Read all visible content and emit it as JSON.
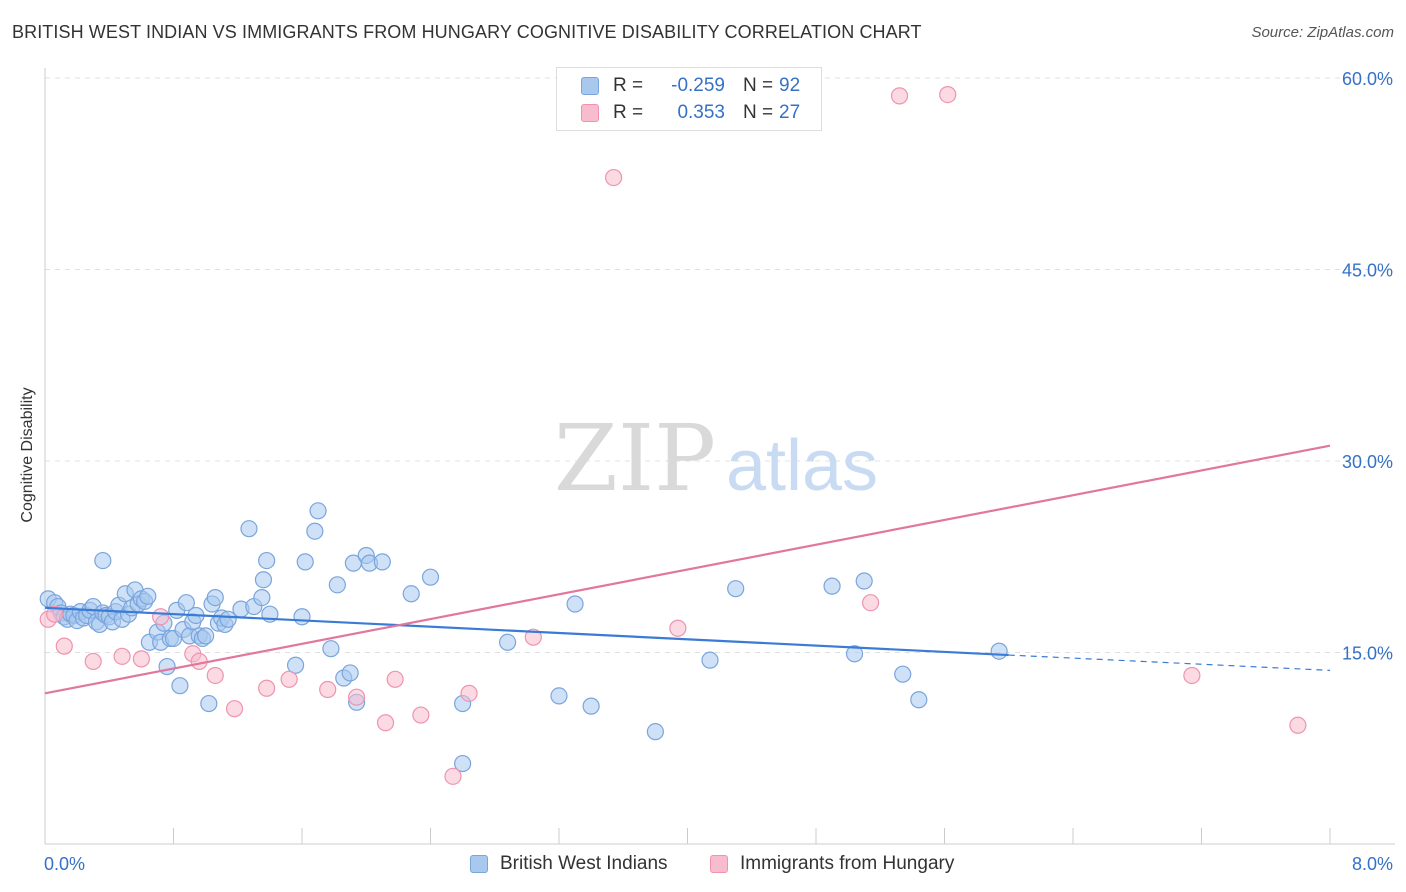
{
  "header": {
    "title": "BRITISH WEST INDIAN VS IMMIGRANTS FROM HUNGARY COGNITIVE DISABILITY CORRELATION CHART",
    "source": "Source: ZipAtlas.com"
  },
  "legend": {
    "rows": [
      {
        "r_label": "R =",
        "r_value": "-0.259",
        "n_label": "N =",
        "n_value": "92"
      },
      {
        "r_label": "R =",
        "r_value": "0.353",
        "n_label": "N =",
        "n_value": "27"
      }
    ]
  },
  "watermark": {
    "zip": "ZIP",
    "atlas": "atlas"
  },
  "colors": {
    "blue_fill": "#a8c8ee",
    "blue_stroke": "#7aa5dc",
    "blue_line": "#3a7bd5",
    "pink_fill": "#f7bccd",
    "pink_stroke": "#ef93ae",
    "pink_line": "#e2779e",
    "axis_label": "#3571c6",
    "grid": "#e0e0e0"
  },
  "chart_data": {
    "type": "scatter",
    "title": "BRITISH WEST INDIAN VS IMMIGRANTS FROM HUNGARY COGNITIVE DISABILITY CORRELATION CHART",
    "xlabel": "",
    "ylabel": "Cognitive Disability",
    "xlim": [
      0,
      8
    ],
    "ylim": [
      0,
      60
    ],
    "x_tick_labels": [
      "0.0%",
      "8.0%"
    ],
    "y_ticks": [
      15,
      30,
      45,
      60
    ],
    "y_tick_labels": [
      "15.0%",
      "30.0%",
      "45.0%",
      "60.0%"
    ],
    "grid": true,
    "legend_position": "bottom",
    "series": [
      {
        "name": "British West Indians",
        "color": "#a8c8ee",
        "r": -0.259,
        "n": 92,
        "trend": {
          "x0": 0,
          "y0": 18.5,
          "x1": 6.0,
          "y1": 14.8,
          "dashed_to_x": 8.0,
          "dashed_to_y": 13.6
        },
        "points": [
          [
            0.02,
            19.2
          ],
          [
            0.06,
            18.9
          ],
          [
            0.08,
            18.6
          ],
          [
            0.1,
            18.1
          ],
          [
            0.12,
            17.8
          ],
          [
            0.14,
            17.6
          ],
          [
            0.16,
            18.0
          ],
          [
            0.18,
            17.9
          ],
          [
            0.2,
            17.5
          ],
          [
            0.22,
            18.2
          ],
          [
            0.24,
            17.7
          ],
          [
            0.26,
            17.9
          ],
          [
            0.28,
            18.3
          ],
          [
            0.3,
            18.6
          ],
          [
            0.32,
            17.4
          ],
          [
            0.34,
            17.2
          ],
          [
            0.36,
            18.1
          ],
          [
            0.38,
            17.9
          ],
          [
            0.4,
            17.8
          ],
          [
            0.42,
            17.4
          ],
          [
            0.44,
            18.2
          ],
          [
            0.46,
            18.7
          ],
          [
            0.48,
            17.6
          ],
          [
            0.5,
            19.6
          ],
          [
            0.52,
            18.0
          ],
          [
            0.54,
            18.5
          ],
          [
            0.56,
            19.9
          ],
          [
            0.58,
            18.8
          ],
          [
            0.6,
            19.2
          ],
          [
            0.62,
            19.0
          ],
          [
            0.64,
            19.4
          ],
          [
            0.36,
            22.2
          ],
          [
            0.65,
            15.8
          ],
          [
            0.7,
            16.6
          ],
          [
            0.72,
            15.8
          ],
          [
            0.74,
            17.3
          ],
          [
            0.76,
            13.9
          ],
          [
            0.78,
            16.1
          ],
          [
            0.8,
            16.1
          ],
          [
            0.82,
            18.3
          ],
          [
            0.84,
            12.4
          ],
          [
            0.86,
            16.8
          ],
          [
            0.88,
            18.9
          ],
          [
            0.9,
            16.3
          ],
          [
            0.92,
            17.4
          ],
          [
            0.94,
            17.9
          ],
          [
            0.96,
            16.3
          ],
          [
            0.98,
            16.1
          ],
          [
            1.0,
            16.3
          ],
          [
            1.02,
            11.0
          ],
          [
            1.04,
            18.8
          ],
          [
            1.06,
            19.3
          ],
          [
            1.08,
            17.3
          ],
          [
            1.1,
            17.7
          ],
          [
            1.12,
            17.2
          ],
          [
            1.14,
            17.6
          ],
          [
            1.22,
            18.4
          ],
          [
            1.27,
            24.7
          ],
          [
            1.3,
            18.6
          ],
          [
            1.35,
            19.3
          ],
          [
            1.36,
            20.7
          ],
          [
            1.38,
            22.2
          ],
          [
            1.4,
            18.0
          ],
          [
            1.56,
            14.0
          ],
          [
            1.6,
            17.8
          ],
          [
            1.62,
            22.1
          ],
          [
            1.68,
            24.5
          ],
          [
            1.7,
            26.1
          ],
          [
            1.78,
            15.3
          ],
          [
            1.82,
            20.3
          ],
          [
            1.86,
            13.0
          ],
          [
            1.9,
            13.4
          ],
          [
            1.92,
            22.0
          ],
          [
            1.94,
            11.1
          ],
          [
            2.0,
            22.6
          ],
          [
            2.02,
            22.0
          ],
          [
            2.1,
            22.1
          ],
          [
            2.28,
            19.6
          ],
          [
            2.4,
            20.9
          ],
          [
            2.6,
            6.3
          ],
          [
            2.6,
            11.0
          ],
          [
            2.88,
            15.8
          ],
          [
            3.2,
            11.6
          ],
          [
            3.3,
            18.8
          ],
          [
            3.4,
            10.8
          ],
          [
            3.8,
            8.8
          ],
          [
            4.14,
            14.4
          ],
          [
            4.3,
            20.0
          ],
          [
            4.9,
            20.2
          ],
          [
            5.04,
            14.9
          ],
          [
            5.1,
            20.6
          ],
          [
            5.34,
            13.3
          ],
          [
            5.44,
            11.3
          ],
          [
            5.94,
            15.1
          ]
        ]
      },
      {
        "name": "Immigrants from Hungary",
        "color": "#f7bccd",
        "r": 0.353,
        "n": 27,
        "trend": {
          "x0": 0,
          "y0": 11.8,
          "x1": 8.0,
          "y1": 31.2
        },
        "points": [
          [
            0.02,
            17.6
          ],
          [
            0.06,
            18.0
          ],
          [
            0.12,
            15.5
          ],
          [
            0.3,
            14.3
          ],
          [
            0.48,
            14.7
          ],
          [
            0.6,
            14.5
          ],
          [
            0.72,
            17.8
          ],
          [
            0.92,
            14.9
          ],
          [
            0.96,
            14.3
          ],
          [
            1.06,
            13.2
          ],
          [
            1.18,
            10.6
          ],
          [
            1.38,
            12.2
          ],
          [
            1.52,
            12.9
          ],
          [
            1.76,
            12.1
          ],
          [
            1.94,
            11.5
          ],
          [
            2.12,
            9.5
          ],
          [
            2.18,
            12.9
          ],
          [
            2.34,
            10.1
          ],
          [
            2.54,
            5.3
          ],
          [
            2.64,
            11.8
          ],
          [
            3.04,
            16.2
          ],
          [
            3.54,
            52.2
          ],
          [
            3.94,
            16.9
          ],
          [
            5.14,
            18.9
          ],
          [
            5.32,
            58.6
          ],
          [
            5.62,
            58.7
          ],
          [
            7.14,
            13.2
          ],
          [
            7.8,
            9.3
          ]
        ]
      }
    ]
  }
}
